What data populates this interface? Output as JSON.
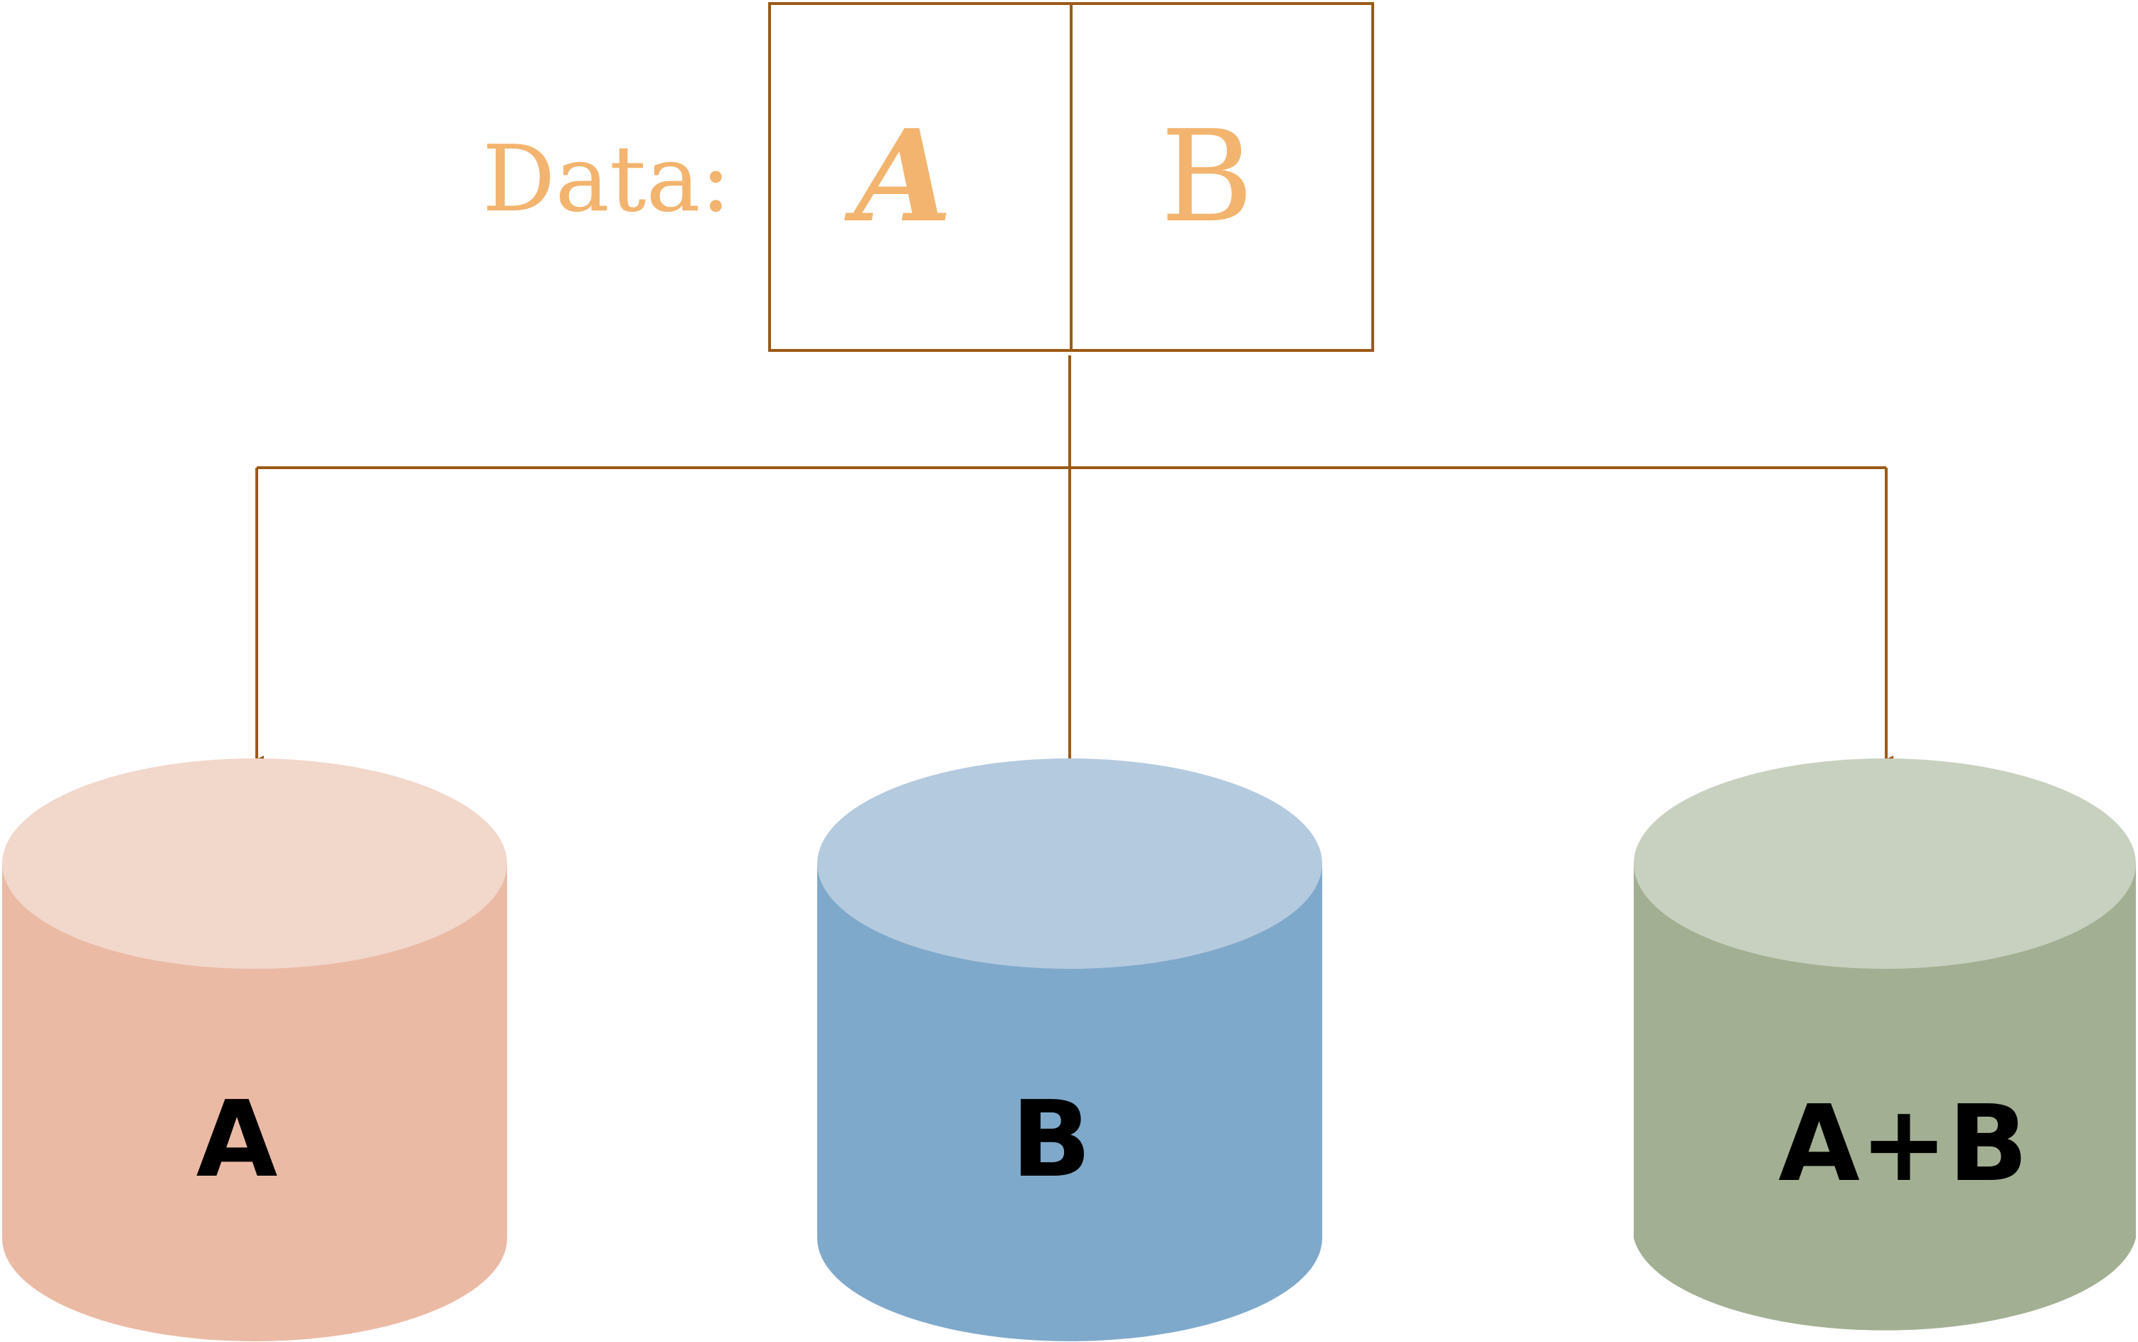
{
  "data_label": "Data:",
  "record": {
    "fields": [
      "A",
      "B"
    ]
  },
  "databases": [
    {
      "label": "A",
      "receives_arrow": true
    },
    {
      "label": "B",
      "receives_arrow": false
    },
    {
      "label": "A+B",
      "receives_arrow": true
    }
  ],
  "colors": {
    "connector": "#9c5a16",
    "data_text": "#f2b46e",
    "label_text": "#000000",
    "db_a_top": "#f2d7cb",
    "db_a_body": "#ebbaa5",
    "db_b_top": "#b4cadf",
    "db_b_body": "#7fa9cb",
    "db_c_top": "#c8d1bf",
    "db_c_body": "#a3af93"
  }
}
